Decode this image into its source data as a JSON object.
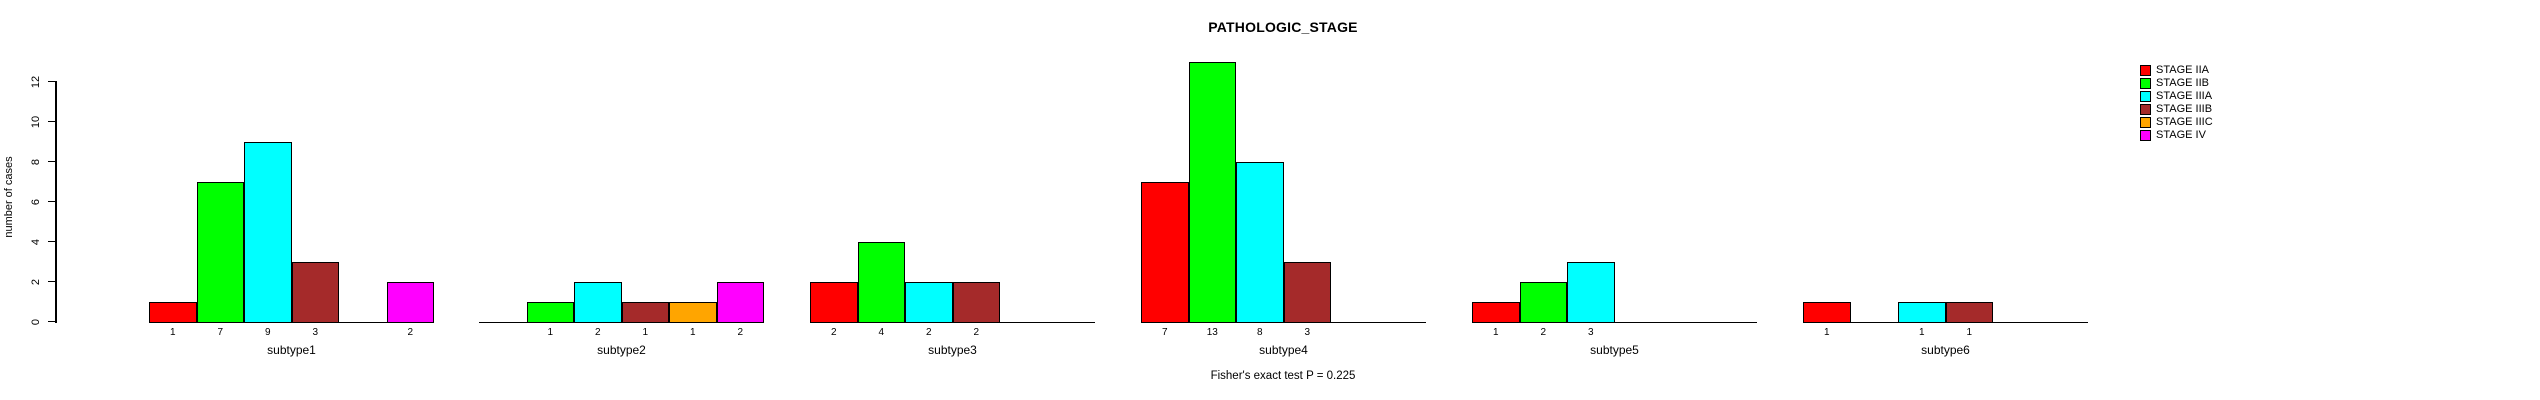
{
  "page": {
    "background": "#ffffff"
  },
  "chart_data": {
    "type": "bar",
    "title": "PATHOLOGIC_STAGE",
    "xlabel": "",
    "ylabel": "number of cases",
    "annotation": "Fisher's exact test P = 0.225",
    "ylim": [
      0,
      13
    ],
    "yticks": [
      0,
      2,
      4,
      6,
      8,
      10,
      12
    ],
    "grid": false,
    "legend_position": "top-right",
    "bar_labels": "non-zero bar values are printed below each bar",
    "categories": [
      "subtype1",
      "subtype2",
      "subtype3",
      "subtype4",
      "subtype5",
      "subtype6"
    ],
    "series": [
      {
        "name": "STAGE IIA",
        "color": "#ff0000",
        "values": [
          1,
          0,
          2,
          7,
          1,
          1
        ]
      },
      {
        "name": "STAGE IIB",
        "color": "#00ff00",
        "values": [
          7,
          1,
          4,
          13,
          2,
          0
        ]
      },
      {
        "name": "STAGE IIIA",
        "color": "#00ffff",
        "values": [
          9,
          2,
          2,
          8,
          3,
          1
        ]
      },
      {
        "name": "STAGE IIIB",
        "color": "#a52a2a",
        "values": [
          3,
          1,
          2,
          3,
          0,
          1
        ]
      },
      {
        "name": "STAGE IIIC",
        "color": "#ffa500",
        "values": [
          0,
          1,
          0,
          0,
          0,
          0
        ]
      },
      {
        "name": "STAGE IV",
        "color": "#ff00ff",
        "values": [
          2,
          2,
          0,
          0,
          0,
          0
        ]
      }
    ]
  }
}
